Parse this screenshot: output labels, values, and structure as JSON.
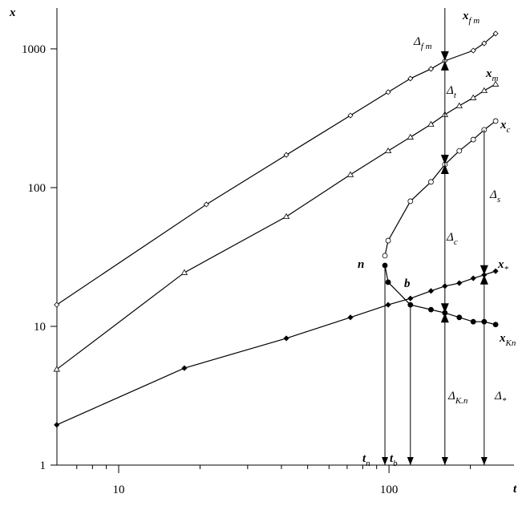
{
  "chart_data": {
    "type": "line",
    "x_label": "t",
    "y_label": "x",
    "log_x": true,
    "log_y": true,
    "xlim": [
      5.91,
      290
    ],
    "ylim": [
      1,
      1970
    ],
    "xticks": [
      10,
      100
    ],
    "x_minor_ticks": [
      7,
      8,
      9,
      20,
      30,
      40,
      50,
      60,
      70,
      80,
      90,
      200
    ],
    "yticks": [
      1,
      10,
      100,
      1000
    ],
    "series": [
      {
        "marker": "open-diamond",
        "color": "#000000",
        "x": [
          5.9,
          21.1,
          41.7,
          72,
          99.3,
          120,
          143,
          161,
          205,
          225,
          248
        ],
        "values": [
          14.3,
          75.6,
          172,
          331,
          488,
          611,
          717,
          820,
          973,
          1096,
          1290
        ]
      },
      {
        "marker": "open-triangle",
        "color": "#000000",
        "x": [
          5.9,
          17.5,
          41.7,
          72,
          99.3,
          120,
          143,
          161,
          182,
          205,
          225,
          248
        ],
        "values": [
          4.9,
          24.4,
          61.8,
          124,
          184,
          231,
          286,
          336,
          389,
          444,
          500,
          557
        ]
      },
      {
        "marker": "open-circle",
        "color": "#000000",
        "x": [
          96.6,
          99.3,
          120,
          143,
          161,
          182,
          205,
          225,
          248
        ],
        "values": [
          32.3,
          41.5,
          79.8,
          110,
          147,
          184,
          222,
          261,
          302
        ]
      },
      {
        "marker": "filled-diamond",
        "color": "#000000",
        "x": [
          5.9,
          17.5,
          41.7,
          72,
          99.3,
          120,
          143,
          161,
          182,
          205,
          225,
          248
        ],
        "values": [
          1.95,
          5.0,
          8.2,
          11.6,
          14.3,
          15.9,
          18,
          19.5,
          20.5,
          22.2,
          23.5,
          25
        ]
      },
      {
        "marker": "filled-circle",
        "color": "#000000",
        "x": [
          96.6,
          99.3,
          120,
          143,
          161,
          182,
          205,
          225,
          248
        ],
        "values": [
          27.5,
          20.8,
          14.3,
          13.2,
          12.5,
          11.6,
          10.8,
          10.8,
          10.3
        ]
      }
    ],
    "annotations": [
      {
        "text": "x",
        "sub": "f m"
      },
      {
        "text": "x",
        "sub": "m"
      },
      {
        "text": "x",
        "sub": "c"
      },
      {
        "text": "x",
        "sub": "*"
      },
      {
        "text": "x",
        "sub": "Kn"
      },
      {
        "text": "Δ",
        "sub": "f m"
      },
      {
        "text": "Δ",
        "sub": "t"
      },
      {
        "text": "Δ",
        "sub": "c"
      },
      {
        "text": "Δ",
        "sub": "s"
      },
      {
        "text": "Δ",
        "sub": "K.n"
      },
      {
        "text": "Δ",
        "sub": "*"
      },
      {
        "text": "n",
        "sub": ""
      },
      {
        "text": "b",
        "sub": ""
      },
      {
        "text": "t",
        "sub": "n"
      },
      {
        "text": "t",
        "sub": "b"
      }
    ]
  }
}
